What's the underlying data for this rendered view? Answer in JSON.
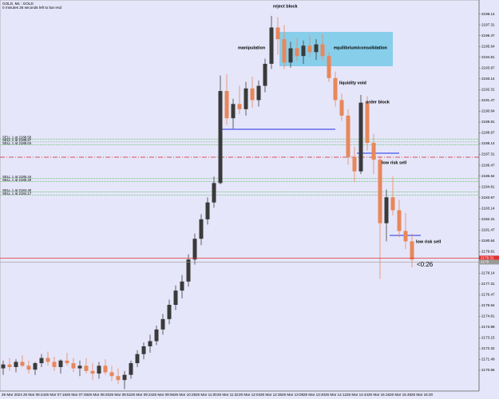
{
  "chart_data": {
    "type": "candlestick",
    "header": [
      "GOLD, M1 : GOLD",
      "0 minutes 26 seconds left to bar end"
    ],
    "bull_color": "#3a3a3a",
    "bear_color": "#e8875a",
    "ylim": [
      2169.05,
      2199.1
    ],
    "yticks": [
      2170.66,
      2171.49,
      2172.32,
      2173.15,
      2173.98,
      2174.81,
      2175.64,
      2176.47,
      2177.31,
      2178.14,
      2178.97,
      2179.81,
      2180.64,
      2181.47,
      2182.31,
      2183.14,
      2183.97,
      2184.81,
      2185.64,
      2186.47,
      2187.31,
      2188.14,
      2188.97,
      2189.81,
      2190.64,
      2191.47,
      2192.31,
      2193.14,
      2193.97,
      2194.81,
      2195.64,
      2196.47,
      2197.31,
      2198.14
    ],
    "time_labels": [
      "26 Mar 2024",
      "26 Mar 06:44",
      "26 Mar 07:16",
      "26 Mar 07:48",
      "26 Mar 08:20",
      "26 Mar 08:52",
      "26 Mar 09:24",
      "26 Mar 09:56",
      "26 Mar 10:28",
      "26 Mar 11:00",
      "26 Mar 11:32",
      "26 Mar 12:04",
      "26 Mar 12:36",
      "26 Mar 13:08",
      "26 Mar 13:40",
      "26 Mar 14:12",
      "26 Mar 14:44",
      "26 Mar 15:16",
      "26 Mar 15:48",
      "26 Mar 16:20"
    ],
    "candles": [
      [
        2170.8,
        2171.4,
        2170.3,
        2171.1
      ],
      [
        2171.1,
        2171.6,
        2170.6,
        2170.9
      ],
      [
        2170.9,
        2171.5,
        2170.5,
        2171.3
      ],
      [
        2171.3,
        2171.8,
        2170.9,
        2171.0
      ],
      [
        2171.0,
        2171.4,
        2170.4,
        2170.7
      ],
      [
        2170.7,
        2171.3,
        2170.3,
        2171.2
      ],
      [
        2171.2,
        2171.9,
        2170.9,
        2171.6
      ],
      [
        2171.6,
        2172.1,
        2171.0,
        2171.3
      ],
      [
        2171.3,
        2171.7,
        2170.6,
        2170.9
      ],
      [
        2170.9,
        2171.5,
        2170.4,
        2171.4
      ],
      [
        2171.4,
        2172.0,
        2171.0,
        2171.2
      ],
      [
        2171.2,
        2171.6,
        2170.5,
        2170.8
      ],
      [
        2170.8,
        2171.4,
        2170.2,
        2171.0
      ],
      [
        2171.0,
        2171.6,
        2170.4,
        2170.6
      ],
      [
        2170.6,
        2171.2,
        2169.9,
        2170.4
      ],
      [
        2170.4,
        2171.3,
        2170.0,
        2171.0
      ],
      [
        2171.0,
        2171.5,
        2170.3,
        2170.5
      ],
      [
        2170.5,
        2171.0,
        2169.8,
        2170.2
      ],
      [
        2170.2,
        2170.8,
        2169.6,
        2169.9
      ],
      [
        2169.9,
        2170.6,
        2169.2,
        2170.3
      ],
      [
        2170.3,
        2171.4,
        2170.0,
        2171.2
      ],
      [
        2171.2,
        2172.2,
        2170.9,
        2171.9
      ],
      [
        2171.9,
        2172.8,
        2171.5,
        2172.5
      ],
      [
        2172.5,
        2173.4,
        2172.0,
        2172.9
      ],
      [
        2172.9,
        2174.1,
        2172.6,
        2173.8
      ],
      [
        2173.8,
        2175.0,
        2173.4,
        2174.6
      ],
      [
        2174.6,
        2176.1,
        2174.2,
        2175.7
      ],
      [
        2175.7,
        2177.2,
        2175.3,
        2176.8
      ],
      [
        2176.8,
        2178.0,
        2176.2,
        2177.5
      ],
      [
        2177.5,
        2179.6,
        2177.1,
        2179.2
      ],
      [
        2179.2,
        2181.2,
        2178.8,
        2180.8
      ],
      [
        2180.8,
        2182.7,
        2180.3,
        2182.3
      ],
      [
        2182.3,
        2184.0,
        2181.9,
        2183.6
      ],
      [
        2183.6,
        2185.6,
        2183.2,
        2185.1
      ],
      [
        2185.1,
        2193.4,
        2185.0,
        2192.2
      ],
      [
        2192.2,
        2193.5,
        2189.6,
        2190.1
      ],
      [
        2190.1,
        2191.6,
        2189.3,
        2191.2
      ],
      [
        2191.2,
        2192.6,
        2190.4,
        2190.8
      ],
      [
        2190.8,
        2192.9,
        2190.3,
        2192.4
      ],
      [
        2192.4,
        2193.3,
        2190.9,
        2191.5
      ],
      [
        2191.5,
        2193.0,
        2191.0,
        2192.6
      ],
      [
        2192.6,
        2194.7,
        2192.1,
        2194.3
      ],
      [
        2194.3,
        2198.0,
        2193.9,
        2197.1
      ],
      [
        2197.1,
        2197.9,
        2195.0,
        2196.2
      ],
      [
        2196.2,
        2197.3,
        2193.9,
        2194.4
      ],
      [
        2194.4,
        2196.0,
        2194.0,
        2195.5
      ],
      [
        2195.5,
        2196.3,
        2194.5,
        2194.9
      ],
      [
        2194.9,
        2196.1,
        2194.3,
        2195.7
      ],
      [
        2195.7,
        2196.5,
        2194.8,
        2195.2
      ],
      [
        2195.2,
        2196.2,
        2194.6,
        2195.8
      ],
      [
        2195.8,
        2196.6,
        2194.6,
        2194.9
      ],
      [
        2194.9,
        2195.2,
        2192.9,
        2193.2
      ],
      [
        2193.2,
        2193.7,
        2191.0,
        2191.5
      ],
      [
        2191.5,
        2192.0,
        2189.9,
        2190.3
      ],
      [
        2190.3,
        2190.8,
        2186.5,
        2187.1
      ],
      [
        2187.1,
        2187.9,
        2185.2,
        2186.0
      ],
      [
        2186.0,
        2191.9,
        2185.8,
        2191.3
      ],
      [
        2191.3,
        2191.8,
        2187.6,
        2188.2
      ],
      [
        2188.2,
        2188.9,
        2185.8,
        2186.9
      ],
      [
        2186.9,
        2187.2,
        2177.7,
        2182.0
      ],
      [
        2182.0,
        2184.6,
        2180.6,
        2184.0
      ],
      [
        2184.0,
        2185.6,
        2182.6,
        2183.0
      ],
      [
        2183.0,
        2183.8,
        2180.9,
        2181.4
      ],
      [
        2181.4,
        2182.8,
        2180.0,
        2180.6
      ],
      [
        2180.6,
        2181.2,
        2178.6,
        2179.2
      ]
    ],
    "orders": [
      {
        "label": "SELL 1 at 2188.50",
        "price": 2188.5
      },
      {
        "label": "SELL 1 at 2188.27",
        "price": 2188.27
      },
      {
        "label": "SELL 1 at 2188.04",
        "price": 2188.04
      },
      {
        "label": "SELL 1 at 2185.44",
        "price": 2185.44
      },
      {
        "label": "SELL 1 at 2185.20",
        "price": 2185.2
      },
      {
        "label": "SELL 1 at 2184.40",
        "price": 2184.4
      },
      {
        "label": "SELL 1 at 2184.17",
        "price": 2184.17
      }
    ],
    "bid": 2179.31,
    "ask": 2179.0,
    "annotations": [
      "reject block",
      "manipulation",
      "equilibrium/consolidation",
      "liquidity void",
      "order block",
      "low risk sell",
      "low risk sell"
    ],
    "countdown": "<0:26"
  }
}
